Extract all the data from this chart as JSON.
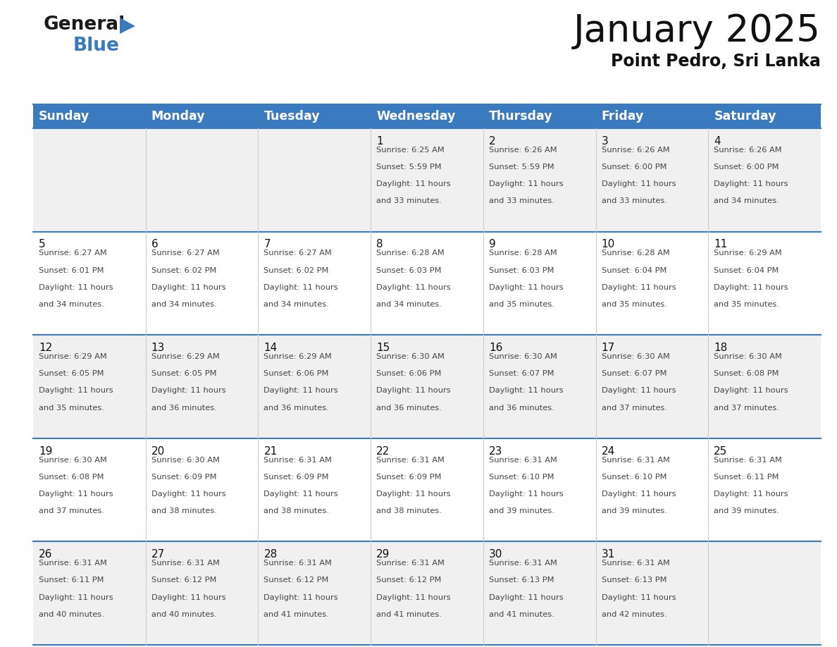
{
  "title": "January 2025",
  "subtitle": "Point Pedro, Sri Lanka",
  "header_bg": "#3a7abf",
  "header_text_color": "#ffffff",
  "cell_bg_odd": "#f0f0f0",
  "cell_bg_even": "#ffffff",
  "grid_color": "#3a7abf",
  "day_names": [
    "Sunday",
    "Monday",
    "Tuesday",
    "Wednesday",
    "Thursday",
    "Friday",
    "Saturday"
  ],
  "title_fontsize": 38,
  "subtitle_fontsize": 17,
  "header_fontsize": 12.5,
  "day_num_fontsize": 11,
  "cell_fontsize": 8.2,
  "days": [
    {
      "date": 1,
      "col": 3,
      "row": 0,
      "sunrise": "6:25 AM",
      "sunset": "5:59 PM",
      "daylight": "11 hours and 33 minutes."
    },
    {
      "date": 2,
      "col": 4,
      "row": 0,
      "sunrise": "6:26 AM",
      "sunset": "5:59 PM",
      "daylight": "11 hours and 33 minutes."
    },
    {
      "date": 3,
      "col": 5,
      "row": 0,
      "sunrise": "6:26 AM",
      "sunset": "6:00 PM",
      "daylight": "11 hours and 33 minutes."
    },
    {
      "date": 4,
      "col": 6,
      "row": 0,
      "sunrise": "6:26 AM",
      "sunset": "6:00 PM",
      "daylight": "11 hours and 34 minutes."
    },
    {
      "date": 5,
      "col": 0,
      "row": 1,
      "sunrise": "6:27 AM",
      "sunset": "6:01 PM",
      "daylight": "11 hours and 34 minutes."
    },
    {
      "date": 6,
      "col": 1,
      "row": 1,
      "sunrise": "6:27 AM",
      "sunset": "6:02 PM",
      "daylight": "11 hours and 34 minutes."
    },
    {
      "date": 7,
      "col": 2,
      "row": 1,
      "sunrise": "6:27 AM",
      "sunset": "6:02 PM",
      "daylight": "11 hours and 34 minutes."
    },
    {
      "date": 8,
      "col": 3,
      "row": 1,
      "sunrise": "6:28 AM",
      "sunset": "6:03 PM",
      "daylight": "11 hours and 34 minutes."
    },
    {
      "date": 9,
      "col": 4,
      "row": 1,
      "sunrise": "6:28 AM",
      "sunset": "6:03 PM",
      "daylight": "11 hours and 35 minutes."
    },
    {
      "date": 10,
      "col": 5,
      "row": 1,
      "sunrise": "6:28 AM",
      "sunset": "6:04 PM",
      "daylight": "11 hours and 35 minutes."
    },
    {
      "date": 11,
      "col": 6,
      "row": 1,
      "sunrise": "6:29 AM",
      "sunset": "6:04 PM",
      "daylight": "11 hours and 35 minutes."
    },
    {
      "date": 12,
      "col": 0,
      "row": 2,
      "sunrise": "6:29 AM",
      "sunset": "6:05 PM",
      "daylight": "11 hours and 35 minutes."
    },
    {
      "date": 13,
      "col": 1,
      "row": 2,
      "sunrise": "6:29 AM",
      "sunset": "6:05 PM",
      "daylight": "11 hours and 36 minutes."
    },
    {
      "date": 14,
      "col": 2,
      "row": 2,
      "sunrise": "6:29 AM",
      "sunset": "6:06 PM",
      "daylight": "11 hours and 36 minutes."
    },
    {
      "date": 15,
      "col": 3,
      "row": 2,
      "sunrise": "6:30 AM",
      "sunset": "6:06 PM",
      "daylight": "11 hours and 36 minutes."
    },
    {
      "date": 16,
      "col": 4,
      "row": 2,
      "sunrise": "6:30 AM",
      "sunset": "6:07 PM",
      "daylight": "11 hours and 36 minutes."
    },
    {
      "date": 17,
      "col": 5,
      "row": 2,
      "sunrise": "6:30 AM",
      "sunset": "6:07 PM",
      "daylight": "11 hours and 37 minutes."
    },
    {
      "date": 18,
      "col": 6,
      "row": 2,
      "sunrise": "6:30 AM",
      "sunset": "6:08 PM",
      "daylight": "11 hours and 37 minutes."
    },
    {
      "date": 19,
      "col": 0,
      "row": 3,
      "sunrise": "6:30 AM",
      "sunset": "6:08 PM",
      "daylight": "11 hours and 37 minutes."
    },
    {
      "date": 20,
      "col": 1,
      "row": 3,
      "sunrise": "6:30 AM",
      "sunset": "6:09 PM",
      "daylight": "11 hours and 38 minutes."
    },
    {
      "date": 21,
      "col": 2,
      "row": 3,
      "sunrise": "6:31 AM",
      "sunset": "6:09 PM",
      "daylight": "11 hours and 38 minutes."
    },
    {
      "date": 22,
      "col": 3,
      "row": 3,
      "sunrise": "6:31 AM",
      "sunset": "6:09 PM",
      "daylight": "11 hours and 38 minutes."
    },
    {
      "date": 23,
      "col": 4,
      "row": 3,
      "sunrise": "6:31 AM",
      "sunset": "6:10 PM",
      "daylight": "11 hours and 39 minutes."
    },
    {
      "date": 24,
      "col": 5,
      "row": 3,
      "sunrise": "6:31 AM",
      "sunset": "6:10 PM",
      "daylight": "11 hours and 39 minutes."
    },
    {
      "date": 25,
      "col": 6,
      "row": 3,
      "sunrise": "6:31 AM",
      "sunset": "6:11 PM",
      "daylight": "11 hours and 39 minutes."
    },
    {
      "date": 26,
      "col": 0,
      "row": 4,
      "sunrise": "6:31 AM",
      "sunset": "6:11 PM",
      "daylight": "11 hours and 40 minutes."
    },
    {
      "date": 27,
      "col": 1,
      "row": 4,
      "sunrise": "6:31 AM",
      "sunset": "6:12 PM",
      "daylight": "11 hours and 40 minutes."
    },
    {
      "date": 28,
      "col": 2,
      "row": 4,
      "sunrise": "6:31 AM",
      "sunset": "6:12 PM",
      "daylight": "11 hours and 41 minutes."
    },
    {
      "date": 29,
      "col": 3,
      "row": 4,
      "sunrise": "6:31 AM",
      "sunset": "6:12 PM",
      "daylight": "11 hours and 41 minutes."
    },
    {
      "date": 30,
      "col": 4,
      "row": 4,
      "sunrise": "6:31 AM",
      "sunset": "6:13 PM",
      "daylight": "11 hours and 41 minutes."
    },
    {
      "date": 31,
      "col": 5,
      "row": 4,
      "sunrise": "6:31 AM",
      "sunset": "6:13 PM",
      "daylight": "11 hours and 42 minutes."
    }
  ]
}
